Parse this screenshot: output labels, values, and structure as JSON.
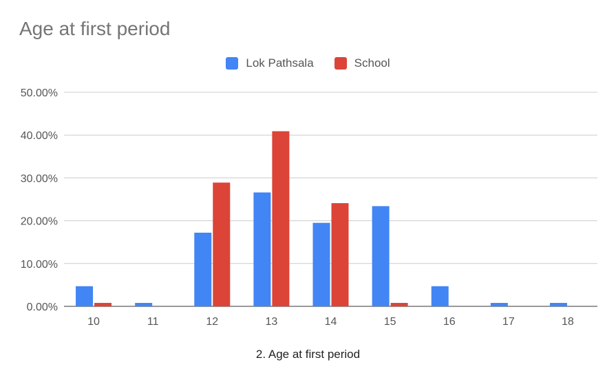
{
  "chart_data": {
    "type": "bar",
    "title": "Age at first period",
    "xlabel": "2. Age at first period",
    "ylabel": "",
    "ylim": [
      0,
      0.5
    ],
    "yticks": [
      0,
      0.1,
      0.2,
      0.3,
      0.4,
      0.5
    ],
    "ytick_labels": [
      "0.00%",
      "10.00%",
      "20.00%",
      "30.00%",
      "40.00%",
      "50.00%"
    ],
    "categories": [
      "10",
      "11",
      "12",
      "13",
      "14",
      "15",
      "16",
      "17",
      "18"
    ],
    "series": [
      {
        "name": "Lok Pathsala",
        "color": "#4285f4",
        "values": [
          0.047,
          0.008,
          0.172,
          0.266,
          0.195,
          0.234,
          0.047,
          0.008,
          0.008
        ]
      },
      {
        "name": "School",
        "color": "#db4437",
        "values": [
          0.008,
          0,
          0.289,
          0.409,
          0.241,
          0.008,
          0,
          0,
          0
        ]
      }
    ],
    "legend_position": "top",
    "grid": true
  }
}
